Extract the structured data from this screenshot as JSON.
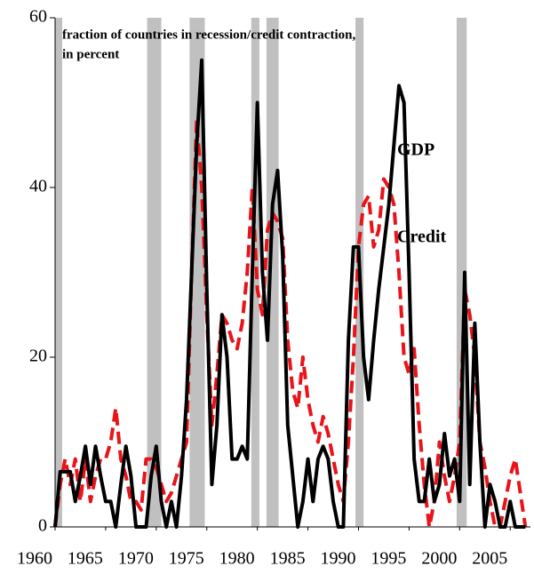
{
  "chart_data": {
    "type": "line",
    "title_lines": [
      "fraction of countries in recession/credit contraction,",
      "in percent"
    ],
    "x": [
      1960,
      1960.5,
      1961,
      1961.5,
      1962,
      1962.5,
      1963,
      1963.5,
      1964,
      1964.5,
      1965,
      1965.5,
      1966,
      1966.5,
      1967,
      1967.5,
      1968,
      1968.5,
      1969,
      1969.5,
      1970,
      1970.5,
      1971,
      1971.5,
      1972,
      1972.5,
      1973,
      1973.5,
      1974,
      1974.5,
      1975,
      1975.5,
      1976,
      1976.5,
      1977,
      1977.5,
      1978,
      1978.5,
      1979,
      1979.5,
      1980,
      1980.5,
      1981,
      1981.5,
      1982,
      1982.5,
      1983,
      1983.5,
      1984,
      1984.5,
      1985,
      1985.5,
      1986,
      1986.5,
      1987,
      1987.5,
      1988,
      1988.5,
      1989,
      1989.5,
      1990,
      1990.5,
      1991,
      1991.5,
      1992,
      1992.5,
      1993,
      1993.5,
      1994,
      1994.5,
      1995,
      1995.5,
      1996,
      1996.5,
      1997,
      1997.5,
      1998,
      1998.5,
      1999,
      1999.5,
      2000,
      2000.5,
      2001,
      2001.5,
      2002,
      2002.5,
      2003,
      2003.5,
      2004,
      2004.5,
      2005,
      2005.5,
      2006,
      2006.5
    ],
    "series": [
      {
        "name": "GDP",
        "color": "#000000",
        "dashed": false,
        "values": [
          0,
          6.5,
          6.5,
          6.5,
          3,
          6,
          9.5,
          5,
          9.5,
          6,
          3,
          3,
          0,
          5,
          9.5,
          6,
          0,
          0,
          0,
          6,
          9.5,
          3,
          0,
          3,
          0,
          6,
          15,
          30,
          45,
          55,
          28,
          5,
          12,
          25,
          20,
          8,
          8,
          9.5,
          8,
          30,
          50,
          30,
          22,
          38,
          42,
          32,
          12,
          6,
          0,
          3,
          8,
          3,
          8,
          9.5,
          8,
          3,
          0,
          0,
          22,
          33,
          33,
          20,
          15,
          22,
          28,
          33,
          38,
          45,
          52,
          50,
          30,
          8,
          3,
          3,
          8,
          3,
          5,
          11,
          6,
          8,
          3,
          30,
          5,
          24,
          10,
          0,
          5,
          3,
          0,
          0,
          3,
          0,
          0,
          0
        ]
      },
      {
        "name": "Credit",
        "color": "#e8141a",
        "dashed": true,
        "values": [
          0,
          5,
          8,
          5,
          8,
          3,
          8,
          3,
          6,
          8,
          8,
          10,
          14,
          8,
          6,
          3,
          3,
          2,
          8,
          8,
          7,
          5,
          3,
          4,
          6,
          8,
          10,
          30,
          48,
          40,
          25,
          12,
          18,
          25,
          24,
          22,
          21,
          24,
          30,
          40,
          28,
          25,
          35,
          37,
          36,
          34,
          22,
          16,
          14,
          20,
          15,
          12,
          10,
          13,
          11,
          8,
          5,
          3,
          10,
          20,
          33,
          38,
          39,
          33,
          35,
          41,
          40,
          38,
          30,
          20,
          18,
          21,
          12,
          5,
          0,
          3,
          10,
          6,
          3,
          6,
          10,
          28,
          25,
          20,
          10,
          7,
          3,
          0,
          0,
          3,
          6,
          8,
          4,
          0
        ]
      }
    ],
    "recession_periods": [
      [
        1960,
        1960.7
      ],
      [
        1969.1,
        1970.5
      ],
      [
        1973.3,
        1974.8
      ],
      [
        1979.4,
        1980.2
      ],
      [
        1980.9,
        1982.1
      ],
      [
        1989.7,
        1990.5
      ],
      [
        1999.7,
        2000.7
      ]
    ],
    "recession_color": "#c0c0c0",
    "xlim": [
      1960,
      2007
    ],
    "xticks": [
      1960,
      1965,
      1970,
      1975,
      1980,
      1985,
      1990,
      1995,
      2000,
      2005
    ],
    "ylim": [
      0,
      60
    ],
    "yticks": [
      0,
      20,
      40,
      60
    ]
  }
}
